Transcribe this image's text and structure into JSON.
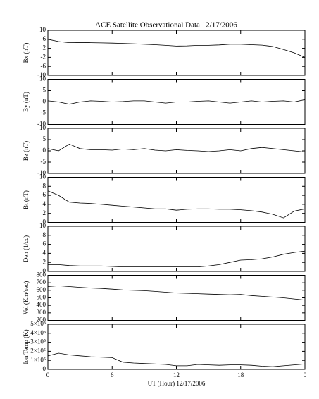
{
  "chart_data": [
    {
      "type": "line",
      "title": "ACE Satellite Observational Data   12/17/2006",
      "ylabel": "Bx (nT)",
      "color": "#000000",
      "x": [
        0,
        1,
        2,
        3,
        4,
        5,
        6,
        7,
        8,
        9,
        10,
        11,
        12,
        13,
        14,
        15,
        16,
        17,
        18,
        19,
        20,
        21,
        22,
        23,
        24
      ],
      "values": [
        6,
        5,
        4.5,
        4.6,
        4.5,
        4.4,
        4.3,
        4.2,
        4,
        3.8,
        3.6,
        3.3,
        3,
        3.1,
        3.3,
        3.3,
        3.5,
        3.8,
        3.8,
        3.6,
        3.4,
        2.8,
        1.5,
        0,
        -2
      ],
      "xlim": [
        0,
        24
      ],
      "ylim": [
        -10,
        10
      ],
      "yticks": [
        -10,
        -6,
        -2,
        2,
        6,
        10
      ]
    },
    {
      "type": "line",
      "ylabel": "By (nT)",
      "color": "#000000",
      "x": [
        0,
        1,
        2,
        3,
        4,
        5,
        6,
        7,
        8,
        9,
        10,
        11,
        12,
        13,
        14,
        15,
        16,
        17,
        18,
        19,
        20,
        21,
        22,
        23,
        24
      ],
      "values": [
        0.5,
        0,
        -1,
        0,
        0.5,
        0.3,
        0,
        0.2,
        0.5,
        0.5,
        0,
        -0.5,
        0,
        0,
        0.3,
        0.5,
        0,
        -0.5,
        0,
        0.5,
        0,
        0.3,
        0.5,
        0,
        1
      ],
      "xlim": [
        0,
        24
      ],
      "ylim": [
        -10,
        10
      ],
      "yticks": [
        -10,
        -5,
        0,
        5,
        10
      ]
    },
    {
      "type": "line",
      "ylabel": "Bz (nT)",
      "color": "#000000",
      "x": [
        0,
        1,
        2,
        3,
        4,
        5,
        6,
        7,
        8,
        9,
        10,
        11,
        12,
        13,
        14,
        15,
        16,
        17,
        18,
        19,
        20,
        21,
        22,
        23,
        24
      ],
      "values": [
        1,
        0,
        3,
        1,
        0.5,
        0.5,
        0.3,
        0.8,
        0.5,
        1,
        0.3,
        0,
        0.5,
        0.2,
        0,
        -0.3,
        0,
        0.5,
        0,
        1,
        1.5,
        1,
        0.5,
        0,
        -0.5
      ],
      "xlim": [
        0,
        24
      ],
      "ylim": [
        -10,
        10
      ],
      "yticks": [
        -10,
        -5,
        0,
        5,
        10
      ]
    },
    {
      "type": "line",
      "ylabel": "Bt (nT)",
      "color": "#000000",
      "x": [
        0,
        1,
        2,
        3,
        4,
        5,
        6,
        7,
        8,
        9,
        10,
        11,
        12,
        13,
        14,
        15,
        16,
        17,
        18,
        19,
        20,
        21,
        22,
        23,
        24
      ],
      "values": [
        7,
        6,
        4.5,
        4.3,
        4.2,
        4,
        3.8,
        3.6,
        3.4,
        3.2,
        3,
        3,
        2.7,
        2.9,
        3,
        3,
        2.9,
        2.9,
        2.8,
        2.6,
        2.3,
        1.8,
        1,
        2.5,
        3
      ],
      "xlim": [
        0,
        24
      ],
      "ylim": [
        0,
        10
      ],
      "yticks": [
        0,
        2,
        4,
        6,
        8,
        10
      ]
    },
    {
      "type": "line",
      "ylabel": "Den (1/cc)",
      "color": "#000000",
      "x": [
        0,
        1,
        2,
        3,
        4,
        5,
        6,
        7,
        8,
        9,
        10,
        11,
        12,
        13,
        14,
        15,
        16,
        17,
        18,
        19,
        20,
        21,
        22,
        23,
        24
      ],
      "values": [
        1.5,
        1.5,
        1.3,
        1.2,
        1.2,
        1.2,
        1.1,
        1,
        1,
        1,
        1,
        1,
        1,
        1,
        1,
        1.2,
        1.5,
        2,
        2.5,
        2.6,
        2.8,
        3.2,
        3.8,
        4.2,
        4.5
      ],
      "xlim": [
        0,
        24
      ],
      "ylim": [
        0,
        10
      ],
      "yticks": [
        0,
        2,
        4,
        6,
        8,
        10
      ]
    },
    {
      "type": "line",
      "ylabel": "Vel (Km/sec)",
      "color": "#000000",
      "x": [
        0,
        1,
        2,
        3,
        4,
        5,
        6,
        7,
        8,
        9,
        10,
        11,
        12,
        13,
        14,
        15,
        16,
        17,
        18,
        19,
        20,
        21,
        22,
        23,
        24
      ],
      "values": [
        650,
        660,
        650,
        640,
        630,
        625,
        615,
        605,
        600,
        595,
        585,
        575,
        565,
        560,
        555,
        550,
        545,
        540,
        545,
        530,
        520,
        510,
        500,
        485,
        470
      ],
      "xlim": [
        0,
        24
      ],
      "ylim": [
        200,
        800
      ],
      "yticks": [
        200,
        300,
        400,
        500,
        600,
        700,
        800
      ]
    },
    {
      "type": "line",
      "ylabel": "Ion Temp (K)",
      "xlabel": "UT (Hour)   12/17/2006",
      "color": "#000000",
      "x": [
        0,
        1,
        2,
        3,
        4,
        5,
        6,
        7,
        8,
        9,
        10,
        11,
        12,
        13,
        14,
        15,
        16,
        17,
        18,
        19,
        20,
        21,
        22,
        23,
        24
      ],
      "values": [
        150000,
        180000,
        160000,
        150000,
        140000,
        135000,
        130000,
        80000,
        70000,
        65000,
        60000,
        55000,
        40000,
        40000,
        55000,
        50000,
        45000,
        50000,
        50000,
        45000,
        35000,
        30000,
        40000,
        50000,
        60000
      ],
      "xlim": [
        0,
        24
      ],
      "ylim": [
        0,
        500000
      ],
      "yticks": [
        0,
        {
          "value": 100000,
          "label": "1×10⁵"
        },
        {
          "value": 200000,
          "label": "2×10⁵"
        },
        {
          "value": 300000,
          "label": "3×10⁵"
        },
        {
          "value": 400000,
          "label": "4×10⁵"
        },
        {
          "value": 500000,
          "label": "5×10⁵"
        }
      ],
      "xticks": [
        0,
        6,
        12,
        18,
        {
          "value": 24,
          "label": "0"
        }
      ]
    }
  ]
}
